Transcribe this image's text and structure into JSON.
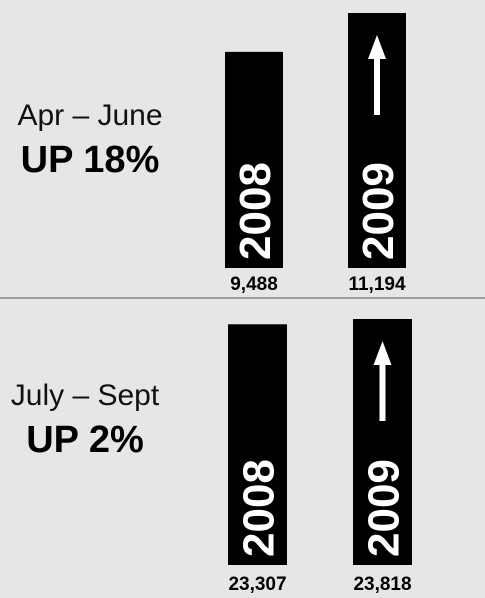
{
  "chart_data": [
    {
      "type": "bar",
      "title": "Apr – June",
      "subtitle": "UP 18%",
      "categories": [
        "2008",
        "2009"
      ],
      "values": [
        9488,
        11194
      ],
      "value_labels": [
        "9,488",
        "11,194"
      ],
      "color": "#000000"
    },
    {
      "type": "bar",
      "title": "July – Sept",
      "subtitle": "UP 2%",
      "categories": [
        "2008",
        "2009"
      ],
      "values": [
        23307,
        23818
      ],
      "value_labels": [
        "23,307",
        "23,818"
      ],
      "color": "#000000"
    }
  ]
}
